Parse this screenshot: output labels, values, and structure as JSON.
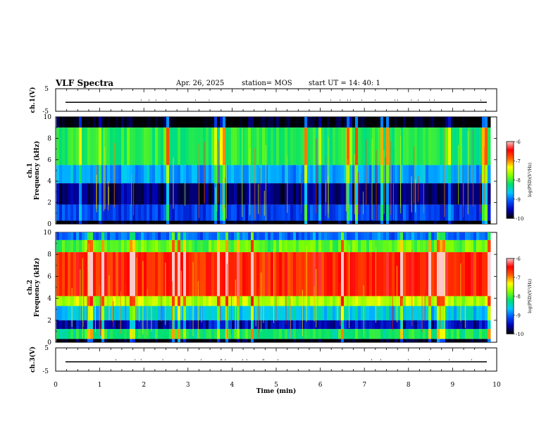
{
  "header": {
    "title": "VLF Spectra",
    "date": "Apr. 26, 2025",
    "station": "station= MOS",
    "start_ut": "start  UT  =    14: 40: 1"
  },
  "chart_data": [
    {
      "type": "line",
      "panel": "ch1-waveform",
      "ylabel": "ch.1(V)",
      "ylim": [
        -5,
        5
      ],
      "yticks": [
        5,
        -5
      ],
      "note": "flat trace near -1 V"
    },
    {
      "type": "heatmap",
      "panel": "ch1-spectrogram",
      "ylabel": "ch.1\nFrequency (kHz)",
      "ylim": [
        0,
        10
      ],
      "yticks": [
        0,
        2,
        4,
        6,
        8,
        10
      ],
      "xlim": [
        0,
        10
      ],
      "colorbar": {
        "label": "log(PSD)(V²/Hz)",
        "range": [
          -10,
          -6
        ],
        "ticks": [
          -6,
          -7,
          -8,
          -9,
          -10
        ]
      },
      "bands": [
        {
          "fmin": 9.0,
          "fmax": 10.0,
          "level": -10.0
        },
        {
          "fmin": 5.5,
          "fmax": 9.0,
          "level": -8.1
        },
        {
          "fmin": 3.8,
          "fmax": 5.5,
          "level": -8.8
        },
        {
          "fmin": 1.8,
          "fmax": 3.8,
          "level": -9.7
        },
        {
          "fmin": 0.3,
          "fmax": 1.8,
          "level": -9.2
        },
        {
          "fmin": 0.0,
          "fmax": 0.3,
          "level": -10.0
        }
      ]
    },
    {
      "type": "heatmap",
      "panel": "ch2-spectrogram",
      "ylabel": "ch.2\nFrequency (kHz)",
      "ylim": [
        0,
        10
      ],
      "yticks": [
        0,
        2,
        4,
        6,
        8,
        10
      ],
      "xlim": [
        0,
        10
      ],
      "colorbar": {
        "label": "log(PSD)(V²/Hz)",
        "range": [
          -10,
          -6
        ],
        "ticks": [
          -6,
          -7,
          -8,
          -9,
          -10
        ]
      },
      "bands": [
        {
          "fmin": 9.3,
          "fmax": 10.0,
          "level": -9.0
        },
        {
          "fmin": 8.2,
          "fmax": 9.3,
          "level": -7.9
        },
        {
          "fmin": 4.2,
          "fmax": 8.2,
          "level": -6.6
        },
        {
          "fmin": 3.3,
          "fmax": 4.2,
          "level": -7.6
        },
        {
          "fmin": 2.0,
          "fmax": 3.3,
          "level": -8.6
        },
        {
          "fmin": 1.2,
          "fmax": 2.0,
          "level": -9.5
        },
        {
          "fmin": 0.3,
          "fmax": 1.2,
          "level": -8.2
        },
        {
          "fmin": 0.0,
          "fmax": 0.3,
          "level": -10.0
        }
      ]
    },
    {
      "type": "line",
      "panel": "ch3-waveform",
      "ylabel": "ch.3(V)",
      "ylim": [
        -5,
        5
      ],
      "yticks": [
        5,
        -5
      ],
      "xlabel": "Time  (min)",
      "xlim": [
        0,
        10
      ],
      "xticks": [
        0,
        1,
        2,
        3,
        4,
        5,
        6,
        7,
        8,
        9,
        10
      ],
      "note": "flat trace near -1 V"
    }
  ],
  "colors": {
    "scale": [
      "#000000",
      "#0000b0",
      "#0050ff",
      "#00c8ff",
      "#00e070",
      "#80ff00",
      "#ffff00",
      "#ff6000",
      "#ff0000",
      "#ffc8c8"
    ]
  }
}
